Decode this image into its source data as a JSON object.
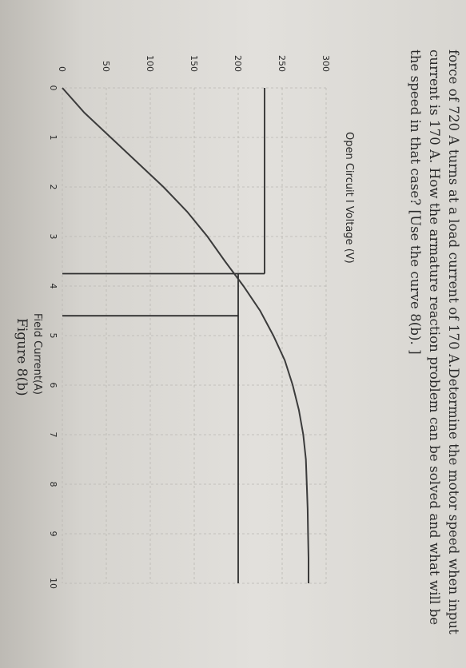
{
  "problem_text": {
    "line1": "force of 720 A turns at a load current of 170 A.Determine the motor speed when input",
    "line2": "current is 170 A. How the armature  reaction problem can be solved and what will be",
    "line3": "the speed in that case? [Use the curve 8(b). ]"
  },
  "figure_caption": "Figure 8(b)",
  "colors": {
    "curve": "#3b3b3b",
    "paper": "#e2e0dc",
    "grid": "#b9b7b2"
  },
  "chart_data": {
    "type": "line",
    "title": "",
    "ylabel": "Open Circuit I Voltage (V)",
    "xlabel": "Field Current(A)",
    "xlim": [
      0,
      10
    ],
    "ylim": [
      0,
      300
    ],
    "x_ticks": [
      "0",
      "1",
      "2",
      "3",
      "4",
      "5",
      "6",
      "7",
      "8",
      "9",
      "10"
    ],
    "y_ticks": [
      "0",
      "50",
      "100",
      "150",
      "200",
      "250",
      "300"
    ],
    "grid": true,
    "series": [
      {
        "x": [
          0,
          0.5,
          1,
          1.5,
          2,
          2.5,
          3,
          3.5,
          4,
          4.5,
          5,
          5.5,
          6,
          6.5,
          7,
          7.5,
          8,
          8.5,
          9,
          9.5,
          10
        ],
        "values": [
          0,
          25,
          55,
          85,
          115,
          142,
          165,
          185,
          206,
          225,
          240,
          253,
          262,
          269,
          274,
          277,
          278,
          279,
          279.5,
          280,
          280
        ]
      }
    ],
    "annotations": [
      {
        "type": "hline",
        "y": 230,
        "x_from": 0,
        "x_to": 3.75
      },
      {
        "type": "vline",
        "x": 3.75,
        "y_from": 0,
        "y_to": 230
      },
      {
        "type": "hline",
        "y": 200,
        "x_from": 3.75,
        "x_to": 10
      },
      {
        "type": "vline",
        "x": 4.6,
        "y_from": 0,
        "y_to": 200
      }
    ]
  }
}
